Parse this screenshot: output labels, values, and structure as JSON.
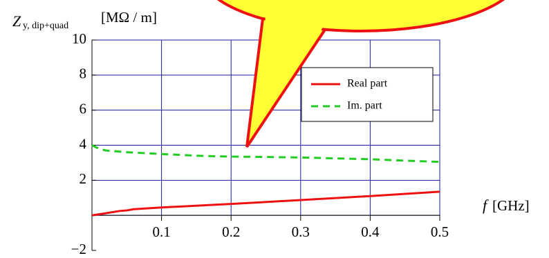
{
  "chart_data": {
    "type": "line",
    "ylabel": "Z",
    "ylabel_sub": "y, dip+quad",
    "ylabel_unit": "[MΩ / m]",
    "xlabel_var": "f",
    "xlabel_unit": "[GHz]",
    "xlim": [
      0,
      0.5
    ],
    "xticks": [
      0.1,
      0.2,
      0.3,
      0.4,
      0.5
    ],
    "ylim": [
      -2,
      10
    ],
    "yticks": [
      {
        "value": -2,
        "label": "−2"
      },
      2,
      4,
      6,
      8,
      10
    ],
    "grid": true,
    "grid_color": "#1a1aa0",
    "series": [
      {
        "name": "Real part",
        "color": "#ee1111",
        "dash": false,
        "x": [
          0,
          0.02,
          0.04,
          0.05,
          0.06,
          0.1,
          0.2,
          0.3,
          0.4,
          0.5
        ],
        "values": [
          0,
          0.12,
          0.25,
          0.28,
          0.35,
          0.45,
          0.65,
          0.87,
          1.1,
          1.35
        ]
      },
      {
        "name": "Im. part",
        "color": "#22cc22",
        "dash": true,
        "x": [
          0,
          0.01,
          0.02,
          0.05,
          0.1,
          0.15,
          0.2,
          0.25,
          0.3,
          0.35,
          0.4,
          0.45,
          0.5
        ],
        "values": [
          4,
          3.8,
          3.7,
          3.6,
          3.5,
          3.4,
          3.35,
          3.33,
          3.3,
          3.25,
          3.2,
          3.12,
          3.05
        ]
      }
    ],
    "legend": "upper right"
  }
}
